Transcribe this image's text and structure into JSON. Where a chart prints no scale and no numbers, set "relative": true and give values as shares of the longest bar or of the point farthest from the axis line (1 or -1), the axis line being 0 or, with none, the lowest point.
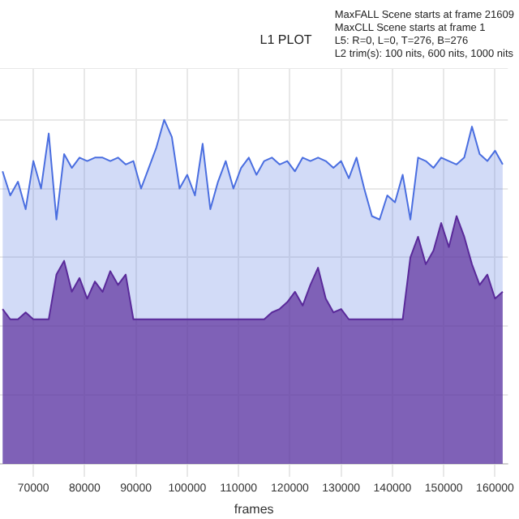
{
  "chart_data": {
    "type": "area",
    "title": "L1 PLOT",
    "xlabel": "frames",
    "relative": true,
    "grid": true,
    "legend": false,
    "marker": "none",
    "annotations": [
      "MaxFALL Scene starts at frame 21609",
      "MaxCLL Scene starts at frame 1",
      "L5: R=0, L=0, T=276, B=276",
      "L2 trim(s): 100 nits, 600 nits, 1000 nits"
    ],
    "xlim": [
      63500,
      162500
    ],
    "xticks": [
      70000,
      80000,
      90000,
      100000,
      110000,
      120000,
      130000,
      140000,
      150000,
      160000
    ],
    "x": [
      64000,
      65500,
      67000,
      68500,
      70000,
      71500,
      73000,
      74500,
      76000,
      77500,
      79000,
      80500,
      82000,
      83500,
      85000,
      86500,
      88000,
      89500,
      91000,
      92500,
      94000,
      95500,
      97000,
      98500,
      100000,
      101500,
      103000,
      104500,
      106000,
      107500,
      109000,
      110500,
      112000,
      113500,
      115000,
      116500,
      118000,
      119500,
      121000,
      122500,
      124000,
      125500,
      127000,
      128500,
      130000,
      131500,
      133000,
      134500,
      136000,
      137500,
      139000,
      140500,
      142000,
      143500,
      145000,
      146500,
      148000,
      149500,
      151000,
      152500,
      154000,
      155500,
      157000,
      158500,
      160000,
      161500
    ],
    "series": [
      {
        "color": "#4a6ee0",
        "values": [
          0.85,
          0.78,
          0.82,
          0.74,
          0.88,
          0.8,
          0.96,
          0.71,
          0.9,
          0.86,
          0.89,
          0.88,
          0.89,
          0.89,
          0.88,
          0.89,
          0.87,
          0.88,
          0.8,
          0.86,
          0.92,
          1.0,
          0.95,
          0.8,
          0.84,
          0.78,
          0.93,
          0.74,
          0.82,
          0.88,
          0.8,
          0.86,
          0.89,
          0.84,
          0.88,
          0.89,
          0.87,
          0.88,
          0.85,
          0.89,
          0.88,
          0.89,
          0.88,
          0.86,
          0.88,
          0.83,
          0.89,
          0.8,
          0.72,
          0.71,
          0.78,
          0.76,
          0.84,
          0.71,
          0.89,
          0.88,
          0.86,
          0.89,
          0.88,
          0.87,
          0.89,
          0.98,
          0.9,
          0.88,
          0.91,
          0.87
        ]
      },
      {
        "color": "#5a2a9a",
        "values": [
          0.45,
          0.42,
          0.42,
          0.44,
          0.42,
          0.42,
          0.42,
          0.55,
          0.59,
          0.5,
          0.54,
          0.48,
          0.53,
          0.5,
          0.56,
          0.52,
          0.55,
          0.42,
          0.42,
          0.42,
          0.42,
          0.42,
          0.42,
          0.42,
          0.42,
          0.42,
          0.42,
          0.42,
          0.42,
          0.42,
          0.42,
          0.42,
          0.42,
          0.42,
          0.42,
          0.44,
          0.45,
          0.47,
          0.5,
          0.46,
          0.52,
          0.57,
          0.48,
          0.44,
          0.45,
          0.42,
          0.42,
          0.42,
          0.42,
          0.42,
          0.42,
          0.42,
          0.42,
          0.6,
          0.66,
          0.58,
          0.62,
          0.7,
          0.63,
          0.72,
          0.66,
          0.58,
          0.52,
          0.55,
          0.48,
          0.5
        ]
      }
    ]
  }
}
